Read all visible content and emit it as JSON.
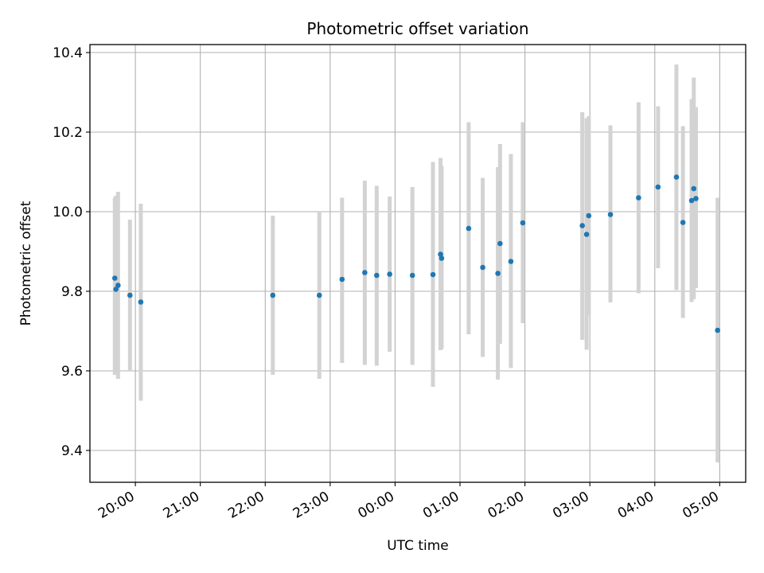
{
  "chart_data": {
    "type": "scatter",
    "title": "Photometric offset variation",
    "xlabel": "UTC time",
    "ylabel": "Photometric offset",
    "xlim": [
      "19:18",
      "05:24"
    ],
    "ylim": [
      9.32,
      10.42
    ],
    "grid": true,
    "x_ticks": [
      "20:00",
      "21:00",
      "22:00",
      "23:00",
      "00:00",
      "01:00",
      "02:00",
      "03:00",
      "04:00",
      "05:00"
    ],
    "y_ticks": [
      "9.4",
      "9.6",
      "9.8",
      "10.0",
      "10.2",
      "10.4"
    ],
    "colors": {
      "point": "#1f77b4",
      "errorbar": "#d3d3d3",
      "grid": "#b0b0b0"
    },
    "series": [
      {
        "points": [
          {
            "x": "19:41",
            "y": 9.833,
            "err_low": 9.59,
            "err_high": 10.035
          },
          {
            "x": "19:42",
            "y": 9.805,
            "err_low": 9.595,
            "err_high": 10.04
          },
          {
            "x": "19:44",
            "y": 9.815,
            "err_low": 9.58,
            "err_high": 10.05
          },
          {
            "x": "19:55",
            "y": 9.79,
            "err_low": 9.6,
            "err_high": 9.98
          },
          {
            "x": "20:05",
            "y": 9.773,
            "err_low": 9.525,
            "err_high": 10.02
          },
          {
            "x": "22:07",
            "y": 9.79,
            "err_low": 9.59,
            "err_high": 9.99
          },
          {
            "x": "22:50",
            "y": 9.79,
            "err_low": 9.58,
            "err_high": 10.0
          },
          {
            "x": "23:11",
            "y": 9.83,
            "err_low": 9.62,
            "err_high": 10.035
          },
          {
            "x": "23:32",
            "y": 9.847,
            "err_low": 9.615,
            "err_high": 10.078
          },
          {
            "x": "23:43",
            "y": 9.84,
            "err_low": 9.613,
            "err_high": 10.065
          },
          {
            "x": "23:55",
            "y": 9.843,
            "err_low": 9.648,
            "err_high": 10.038
          },
          {
            "x": "00:16",
            "y": 9.84,
            "err_low": 9.615,
            "err_high": 10.062
          },
          {
            "x": "00:35",
            "y": 9.842,
            "err_low": 9.56,
            "err_high": 10.125
          },
          {
            "x": "00:42",
            "y": 9.893,
            "err_low": 9.652,
            "err_high": 10.135
          },
          {
            "x": "00:43",
            "y": 9.883,
            "err_low": 9.655,
            "err_high": 10.115
          },
          {
            "x": "01:08",
            "y": 9.958,
            "err_low": 9.692,
            "err_high": 10.225
          },
          {
            "x": "01:21",
            "y": 9.86,
            "err_low": 9.635,
            "err_high": 10.085
          },
          {
            "x": "01:35",
            "y": 9.845,
            "err_low": 9.578,
            "err_high": 10.112
          },
          {
            "x": "01:37",
            "y": 9.92,
            "err_low": 9.668,
            "err_high": 10.17
          },
          {
            "x": "01:47",
            "y": 9.875,
            "err_low": 9.607,
            "err_high": 10.145
          },
          {
            "x": "01:58",
            "y": 9.972,
            "err_low": 9.72,
            "err_high": 10.225
          },
          {
            "x": "02:53",
            "y": 9.965,
            "err_low": 9.678,
            "err_high": 10.25
          },
          {
            "x": "02:57",
            "y": 9.943,
            "err_low": 9.653,
            "err_high": 10.235
          },
          {
            "x": "02:59",
            "y": 9.99,
            "err_low": 9.74,
            "err_high": 10.24
          },
          {
            "x": "03:19",
            "y": 9.993,
            "err_low": 9.772,
            "err_high": 10.217
          },
          {
            "x": "03:45",
            "y": 10.035,
            "err_low": 9.795,
            "err_high": 10.275
          },
          {
            "x": "04:03",
            "y": 10.062,
            "err_low": 9.858,
            "err_high": 10.265
          },
          {
            "x": "04:20",
            "y": 10.087,
            "err_low": 9.803,
            "err_high": 10.37
          },
          {
            "x": "04:26",
            "y": 9.973,
            "err_low": 9.733,
            "err_high": 10.215
          },
          {
            "x": "04:34",
            "y": 10.028,
            "err_low": 9.773,
            "err_high": 10.283
          },
          {
            "x": "04:36",
            "y": 10.058,
            "err_low": 9.78,
            "err_high": 10.337
          },
          {
            "x": "04:38",
            "y": 10.033,
            "err_low": 9.808,
            "err_high": 10.263
          },
          {
            "x": "04:58",
            "y": 9.702,
            "err_low": 9.37,
            "err_high": 10.035
          }
        ]
      }
    ]
  }
}
